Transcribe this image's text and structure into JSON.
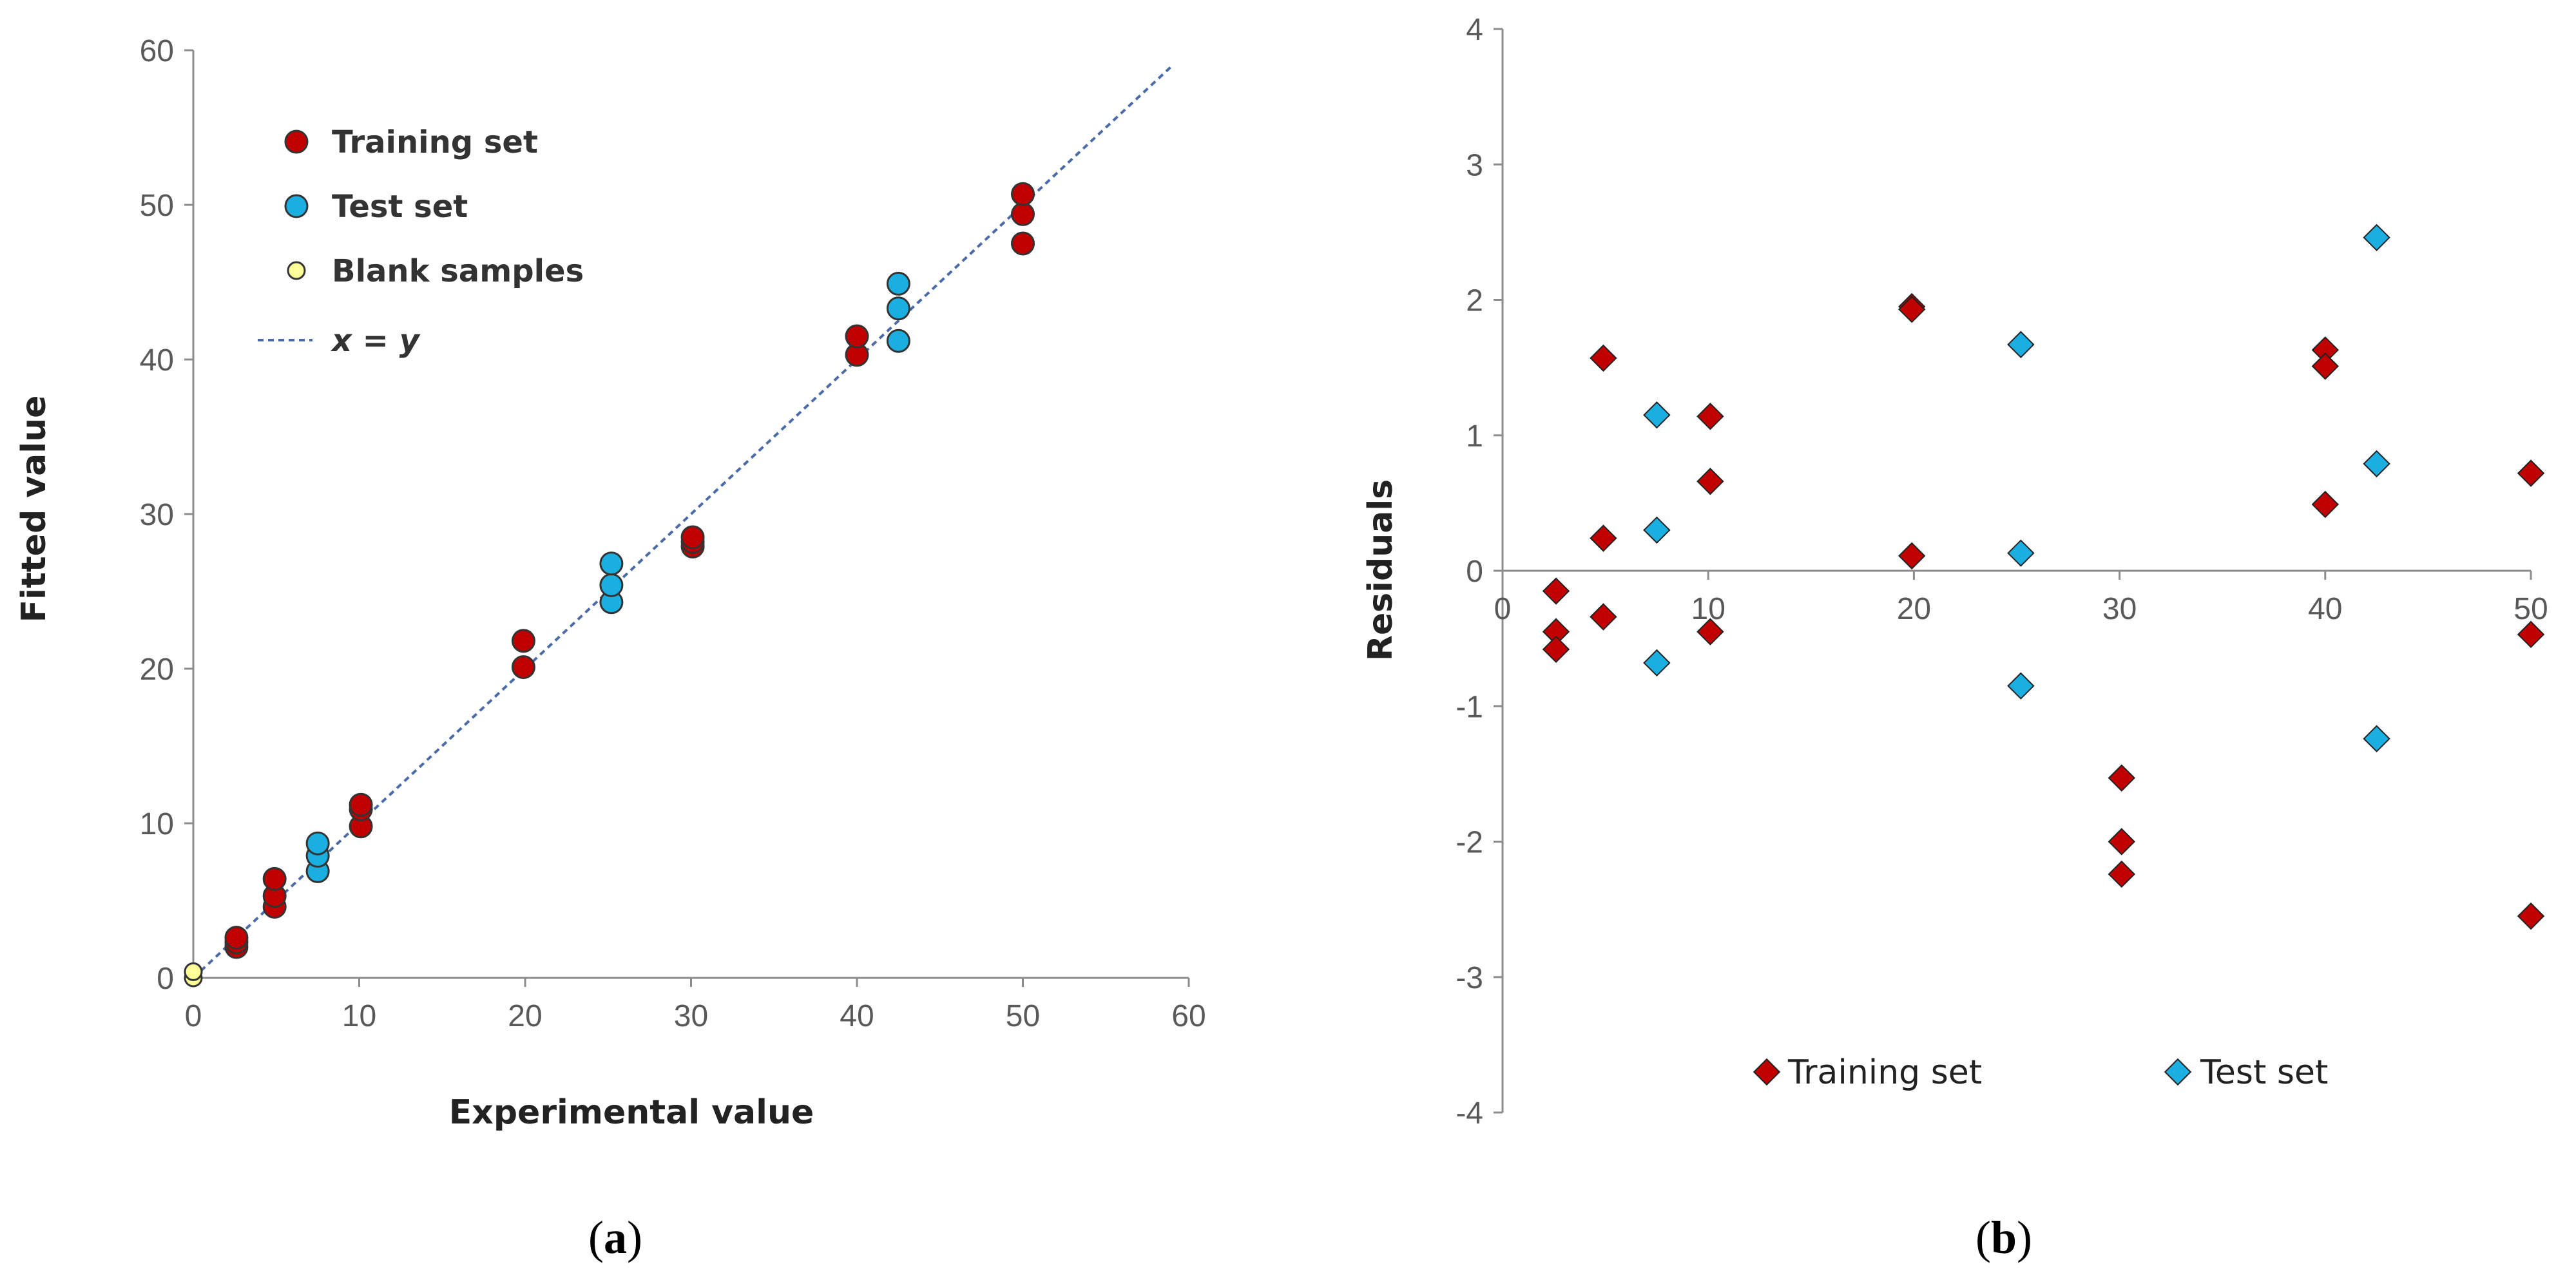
{
  "chart_data": [
    {
      "id": "a",
      "type": "scatter",
      "panel_label_parts": [
        "(",
        "a",
        ")"
      ],
      "xlabel": "Experimental value",
      "ylabel": "Fitted value",
      "xlim": [
        0,
        60
      ],
      "ylim": [
        0,
        60
      ],
      "xticks": [
        0,
        10,
        20,
        30,
        40,
        50,
        60
      ],
      "yticks": [
        0,
        10,
        20,
        30,
        40,
        50,
        60
      ],
      "grid": false,
      "legend_position": "top-left",
      "reference_line": {
        "name": "x = y",
        "from": [
          0,
          0
        ],
        "to": [
          59,
          59
        ],
        "color": "#4A6BA8"
      },
      "series": [
        {
          "name": "Training set",
          "color": "#C00000",
          "points": [
            [
              2.6,
              2.0
            ],
            [
              2.6,
              2.3
            ],
            [
              2.6,
              2.6
            ],
            [
              4.9,
              4.6
            ],
            [
              4.9,
              5.3
            ],
            [
              4.9,
              6.4
            ],
            [
              10.1,
              9.8
            ],
            [
              10.1,
              10.9
            ],
            [
              10.1,
              11.2
            ],
            [
              19.9,
              20.1
            ],
            [
              19.9,
              21.8
            ],
            [
              30.1,
              27.9
            ],
            [
              30.1,
              28.2
            ],
            [
              30.1,
              28.5
            ],
            [
              40.0,
              40.3
            ],
            [
              40.0,
              41.5
            ],
            [
              50.0,
              47.5
            ],
            [
              50.0,
              49.4
            ],
            [
              50.0,
              50.7
            ]
          ]
        },
        {
          "name": "Test set",
          "color": "#1AAFE0",
          "points": [
            [
              7.5,
              6.9
            ],
            [
              7.5,
              7.9
            ],
            [
              7.5,
              8.7
            ],
            [
              25.2,
              24.3
            ],
            [
              25.2,
              25.4
            ],
            [
              25.2,
              26.8
            ],
            [
              42.5,
              41.2
            ],
            [
              42.5,
              43.3
            ],
            [
              42.5,
              44.9
            ]
          ]
        },
        {
          "name": "Blank samples",
          "color": "#FFFF99",
          "points": [
            [
              0,
              0
            ],
            [
              0,
              0.4
            ]
          ]
        }
      ]
    },
    {
      "id": "b",
      "type": "scatter",
      "panel_label_parts": [
        "(",
        "b",
        ")"
      ],
      "xlabel": "",
      "ylabel": "Residuals",
      "xlim": [
        0,
        50
      ],
      "ylim": [
        -4,
        4
      ],
      "xticks": [
        0,
        10,
        20,
        30,
        40,
        50
      ],
      "yticks": [
        -4,
        -3,
        -2,
        -1,
        0,
        1,
        2,
        3,
        4
      ],
      "grid": false,
      "legend_position": "bottom",
      "series": [
        {
          "name": "Training set",
          "color": "#C00000",
          "points": [
            [
              2.6,
              -0.15
            ],
            [
              2.6,
              -0.45
            ],
            [
              2.6,
              -0.58
            ],
            [
              4.9,
              1.57
            ],
            [
              4.9,
              0.24
            ],
            [
              4.9,
              -0.34
            ],
            [
              10.1,
              1.14
            ],
            [
              10.1,
              0.66
            ],
            [
              10.1,
              -0.45
            ],
            [
              19.9,
              1.95
            ],
            [
              19.9,
              1.93
            ],
            [
              19.9,
              0.11
            ],
            [
              30.1,
              -1.53
            ],
            [
              30.1,
              -2.0
            ],
            [
              30.1,
              -2.24
            ],
            [
              40.0,
              1.63
            ],
            [
              40.0,
              1.51
            ],
            [
              40.0,
              0.49
            ],
            [
              50.0,
              0.72
            ],
            [
              50.0,
              -0.47
            ],
            [
              50.0,
              -2.55
            ]
          ]
        },
        {
          "name": "Test set",
          "color": "#1AAFE0",
          "points": [
            [
              7.5,
              1.15
            ],
            [
              7.5,
              0.3
            ],
            [
              7.5,
              -0.68
            ],
            [
              25.2,
              1.67
            ],
            [
              25.2,
              0.13
            ],
            [
              25.2,
              -0.85
            ],
            [
              42.5,
              2.46
            ],
            [
              42.5,
              0.79
            ],
            [
              42.5,
              -1.24
            ]
          ]
        }
      ]
    }
  ]
}
